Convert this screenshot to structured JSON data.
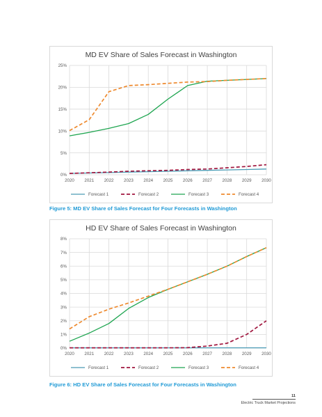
{
  "chart_data": [
    {
      "type": "line",
      "title": "MD EV Share of Sales Forecast in Washington",
      "categories": [
        "2020",
        "2021",
        "2022",
        "2023",
        "2024",
        "2025",
        "2026",
        "2027",
        "2028",
        "2029",
        "2030"
      ],
      "ylim": [
        0,
        25
      ],
      "yticks": [
        "0%",
        "5%",
        "10%",
        "15%",
        "20%",
        "25%"
      ],
      "ytick_values": [
        0,
        5,
        10,
        15,
        20,
        25
      ],
      "grid": true,
      "legend": "bottom",
      "series": [
        {
          "name": "Forecast 1",
          "color": "#4a9bb5",
          "dash": "solid",
          "values": [
            0.3,
            0.4,
            0.5,
            0.6,
            0.7,
            0.8,
            0.9,
            1.0,
            1.1,
            1.2,
            1.3
          ]
        },
        {
          "name": "Forecast 2",
          "color": "#a0163e",
          "dash": "dash",
          "values": [
            0.3,
            0.45,
            0.6,
            0.8,
            0.9,
            1.0,
            1.2,
            1.3,
            1.6,
            1.9,
            2.3
          ]
        },
        {
          "name": "Forecast 3",
          "color": "#1ea550",
          "dash": "solid",
          "values": [
            8.9,
            9.7,
            10.6,
            11.7,
            13.8,
            17.3,
            20.4,
            21.4,
            21.6,
            21.8,
            22.0
          ]
        },
        {
          "name": "Forecast 4",
          "color": "#ee8a2f",
          "dash": "dash",
          "values": [
            10.1,
            12.6,
            19.0,
            20.4,
            20.6,
            20.9,
            21.2,
            21.3,
            21.6,
            21.8,
            22.0
          ]
        }
      ]
    },
    {
      "type": "line",
      "title": "HD EV Share of Sales Forecast in Washington",
      "categories": [
        "2020",
        "2021",
        "2022",
        "2023",
        "2024",
        "2025",
        "2026",
        "2027",
        "2028",
        "2029",
        "2030"
      ],
      "ylim": [
        0,
        8
      ],
      "yticks": [
        "0%",
        "1%",
        "2%",
        "3%",
        "4%",
        "5%",
        "6%",
        "7%",
        "8%"
      ],
      "ytick_values": [
        0,
        1,
        2,
        3,
        4,
        5,
        6,
        7,
        8
      ],
      "grid": true,
      "legend": "bottom",
      "series": [
        {
          "name": "Forecast 1",
          "color": "#4a9bb5",
          "dash": "solid",
          "values": [
            0.02,
            0.02,
            0.02,
            0.02,
            0.02,
            0.02,
            0.02,
            0.02,
            0.02,
            0.02,
            0.02
          ]
        },
        {
          "name": "Forecast 2",
          "color": "#a0163e",
          "dash": "dash",
          "values": [
            0.02,
            0.02,
            0.02,
            0.02,
            0.02,
            0.02,
            0.03,
            0.15,
            0.35,
            1.0,
            2.0
          ]
        },
        {
          "name": "Forecast 3",
          "color": "#1ea550",
          "dash": "solid",
          "values": [
            0.5,
            1.1,
            1.8,
            2.9,
            3.7,
            4.3,
            4.85,
            5.4,
            6.0,
            6.7,
            7.35
          ]
        },
        {
          "name": "Forecast 4",
          "color": "#ee8a2f",
          "dash": "dash",
          "values": [
            1.4,
            2.3,
            2.85,
            3.3,
            3.8,
            4.3,
            4.85,
            5.4,
            6.0,
            6.7,
            7.35
          ]
        }
      ]
    }
  ],
  "captions": [
    "Figure 5: MD EV Share of Sales Forecast for Four Forecasts in Washington",
    "Figure 6: HD EV Share of Sales Forecast for Four Forecasts in Washington"
  ],
  "footer": {
    "page_number": "11",
    "running_title": "Electric Truck Market Projections"
  }
}
